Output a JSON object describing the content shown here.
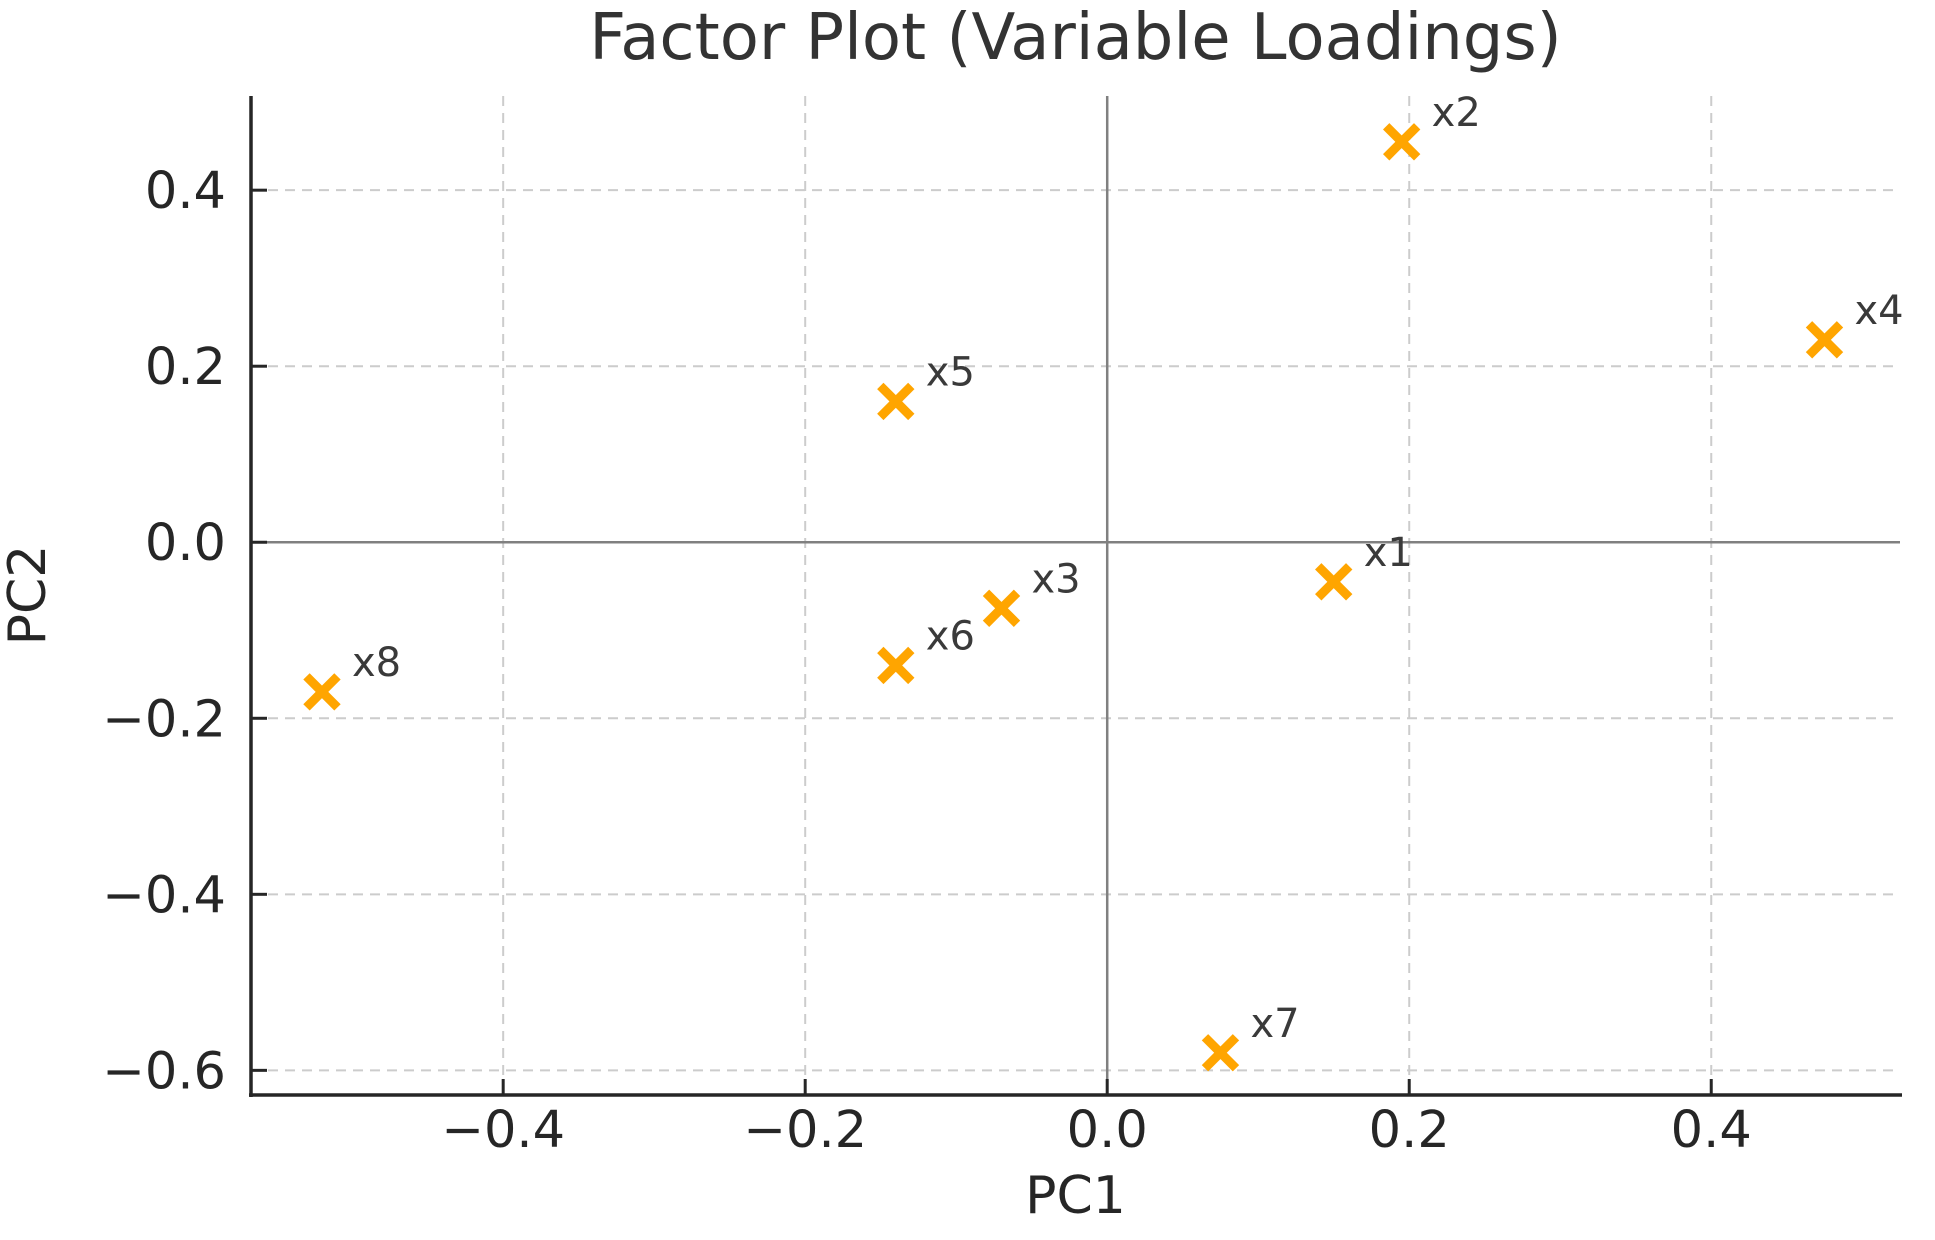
{
  "chart_data": {
    "type": "scatter",
    "title": "Factor Plot (Variable Loadings)",
    "xlabel": "PC1",
    "ylabel": "PC2",
    "xlim": [
      -0.567,
      0.525
    ],
    "ylim": [
      -0.628,
      0.507
    ],
    "xticks": [
      {
        "value": -0.4,
        "label": "−0.4"
      },
      {
        "value": -0.2,
        "label": "−0.2"
      },
      {
        "value": 0.0,
        "label": "0.0"
      },
      {
        "value": 0.2,
        "label": "0.2"
      },
      {
        "value": 0.4,
        "label": "0.4"
      }
    ],
    "yticks": [
      {
        "value": 0.4,
        "label": "0.4"
      },
      {
        "value": 0.2,
        "label": "0.2"
      },
      {
        "value": 0.0,
        "label": "0.0"
      },
      {
        "value": -0.2,
        "label": "−0.2"
      },
      {
        "value": -0.4,
        "label": "−0.4"
      },
      {
        "value": -0.6,
        "label": "−0.6"
      }
    ],
    "grid": {
      "visible": true,
      "linestyle": "dashed"
    },
    "zero_lines": true,
    "marker": "x",
    "points": [
      {
        "label": "x1",
        "x": 0.15,
        "y": -0.045
      },
      {
        "label": "x2",
        "x": 0.195,
        "y": 0.455
      },
      {
        "label": "x3",
        "x": -0.07,
        "y": -0.075
      },
      {
        "label": "x4",
        "x": 0.475,
        "y": 0.23
      },
      {
        "label": "x5",
        "x": -0.14,
        "y": 0.16
      },
      {
        "label": "x6",
        "x": -0.14,
        "y": -0.14
      },
      {
        "label": "x7",
        "x": 0.075,
        "y": -0.58
      },
      {
        "label": "x8",
        "x": -0.52,
        "y": -0.17
      }
    ],
    "colors": {
      "marker": "#FFA500",
      "grid": "#cccccc",
      "zero_line": "#808080",
      "spine": "#262626",
      "tick": "#262626",
      "tick_label": "#262626",
      "point_label": "#3a3a3a",
      "title": "#333333",
      "background": "#ffffff"
    }
  }
}
